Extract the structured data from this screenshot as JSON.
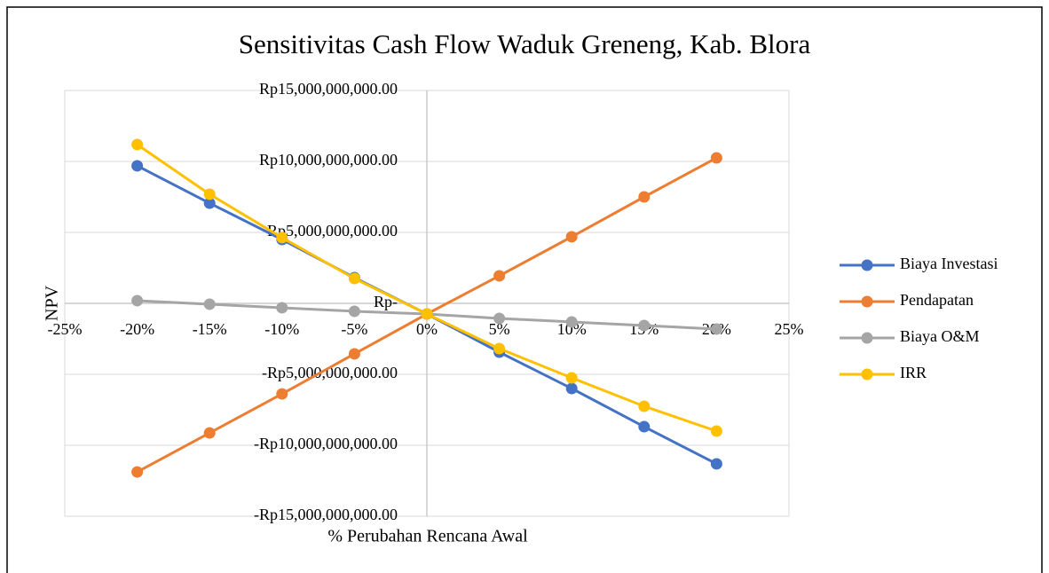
{
  "chart_data": {
    "type": "line",
    "title": "Sensitivitas Cash Flow Waduk Greneng, Kab. Blora",
    "x_label": "% Perubahan Rencana Awal",
    "y_label": "NPV",
    "x": [
      -20,
      -15,
      -10,
      -5,
      0,
      5,
      10,
      15,
      20
    ],
    "xlim": [
      -25,
      25
    ],
    "xticks": [
      {
        "value": -25,
        "label": "-25%"
      },
      {
        "value": -20,
        "label": "-20%"
      },
      {
        "value": -15,
        "label": "-15%"
      },
      {
        "value": -10,
        "label": "-10%"
      },
      {
        "value": -5,
        "label": "-5%"
      },
      {
        "value": 0,
        "label": "0%"
      },
      {
        "value": 5,
        "label": "5%"
      },
      {
        "value": 10,
        "label": "10%"
      },
      {
        "value": 15,
        "label": "15%"
      },
      {
        "value": 20,
        "label": "20%"
      },
      {
        "value": 25,
        "label": "25%"
      }
    ],
    "ylim": [
      -15000000000,
      15000000000
    ],
    "yticks": [
      {
        "value": -15000000000,
        "label": "-Rp15,000,000,000.00"
      },
      {
        "value": -10000000000,
        "label": "-Rp10,000,000,000.00"
      },
      {
        "value": -5000000000,
        "label": "-Rp5,000,000,000.00"
      },
      {
        "value": 0,
        "label": "Rp-"
      },
      {
        "value": 5000000000,
        "label": "Rp5,000,000,000.00"
      },
      {
        "value": 10000000000,
        "label": "Rp10,000,000,000.00"
      },
      {
        "value": 15000000000,
        "label": "Rp15,000,000,000.00"
      }
    ],
    "grid": true,
    "legend": "right",
    "series": [
      {
        "name": "Biaya Investasi",
        "color": "#4472c4",
        "values": [
          9690000000,
          7060000000,
          4500000000,
          1810000000,
          -750000000,
          -3440000000,
          -6000000000,
          -8690000000,
          -11310000000
        ]
      },
      {
        "name": "Pendapatan",
        "color": "#ed7d31",
        "values": [
          -11880000000,
          -9130000000,
          -6380000000,
          -3560000000,
          -750000000,
          1940000000,
          4690000000,
          7500000000,
          10250000000
        ]
      },
      {
        "name": "Biaya O&M",
        "color": "#a5a5a5",
        "values": [
          190000000,
          -60000000,
          -310000000,
          -560000000,
          -750000000,
          -1060000000,
          -1310000000,
          -1560000000,
          -1810000000
        ]
      },
      {
        "name": "IRR",
        "color": "#ffc000",
        "values": [
          11190000000,
          7690000000,
          4630000000,
          1750000000,
          -750000000,
          -3190000000,
          -5250000000,
          -7250000000,
          -9000000000
        ]
      }
    ]
  }
}
